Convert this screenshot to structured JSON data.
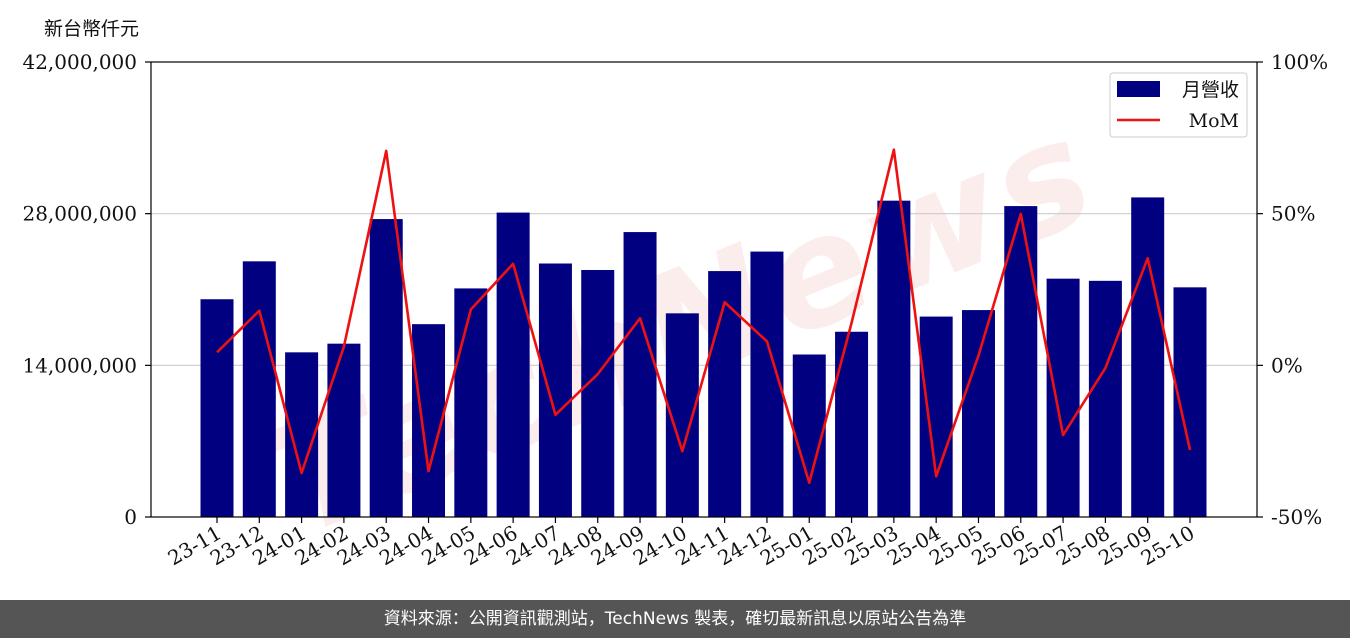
{
  "unit_label": "新台幣仟元",
  "footer_text": "資料來源：公開資訊觀測站，TechNews 製表，確切最新訊息以原站公告為準",
  "watermark_text": "TechNews",
  "colors": {
    "bar": "#000080",
    "line": "#ee1111",
    "footer_bg": "#555555"
  },
  "chart_data": {
    "type": "bar",
    "categories": [
      "23-11",
      "23-12",
      "24-01",
      "24-02",
      "24-03",
      "24-04",
      "24-05",
      "24-06",
      "24-07",
      "24-08",
      "24-09",
      "24-10",
      "24-11",
      "24-12",
      "25-01",
      "25-02",
      "25-03",
      "25-04",
      "25-05",
      "25-06",
      "25-07",
      "25-08",
      "25-09",
      "25-10"
    ],
    "series": [
      {
        "name": "月營收",
        "axis": "left",
        "type": "bar",
        "values": [
          20100000,
          23600000,
          15200000,
          16000000,
          27500000,
          17800000,
          21100000,
          28100000,
          23400000,
          22800000,
          26300000,
          18800000,
          22700000,
          24500000,
          15000000,
          17100000,
          29200000,
          18500000,
          19100000,
          28700000,
          22000000,
          21800000,
          29500000,
          21200000
        ]
      },
      {
        "name": "MoM",
        "axis": "right",
        "type": "line",
        "values": [
          4.3,
          18.0,
          -35.5,
          6.2,
          70.7,
          -34.9,
          18.4,
          33.5,
          -16.3,
          -2.9,
          15.5,
          -28.3,
          20.8,
          7.9,
          -38.7,
          14.0,
          71.1,
          -36.6,
          3.2,
          49.9,
          -23.0,
          -0.9,
          35.3,
          -27.9
        ]
      }
    ],
    "y_left": {
      "ylim": [
        0,
        42000000
      ],
      "ticks": [
        0,
        14000000,
        28000000,
        42000000
      ],
      "tick_labels": [
        "0",
        "14,000,000",
        "28,000,000",
        "42,000,000"
      ]
    },
    "y_right": {
      "ylim": [
        -50,
        100
      ],
      "ticks": [
        -50,
        0,
        50,
        100
      ],
      "tick_labels": [
        "-50%",
        "0%",
        "50%",
        "100%"
      ]
    },
    "grid": "horizontal",
    "legend": "top-right"
  }
}
